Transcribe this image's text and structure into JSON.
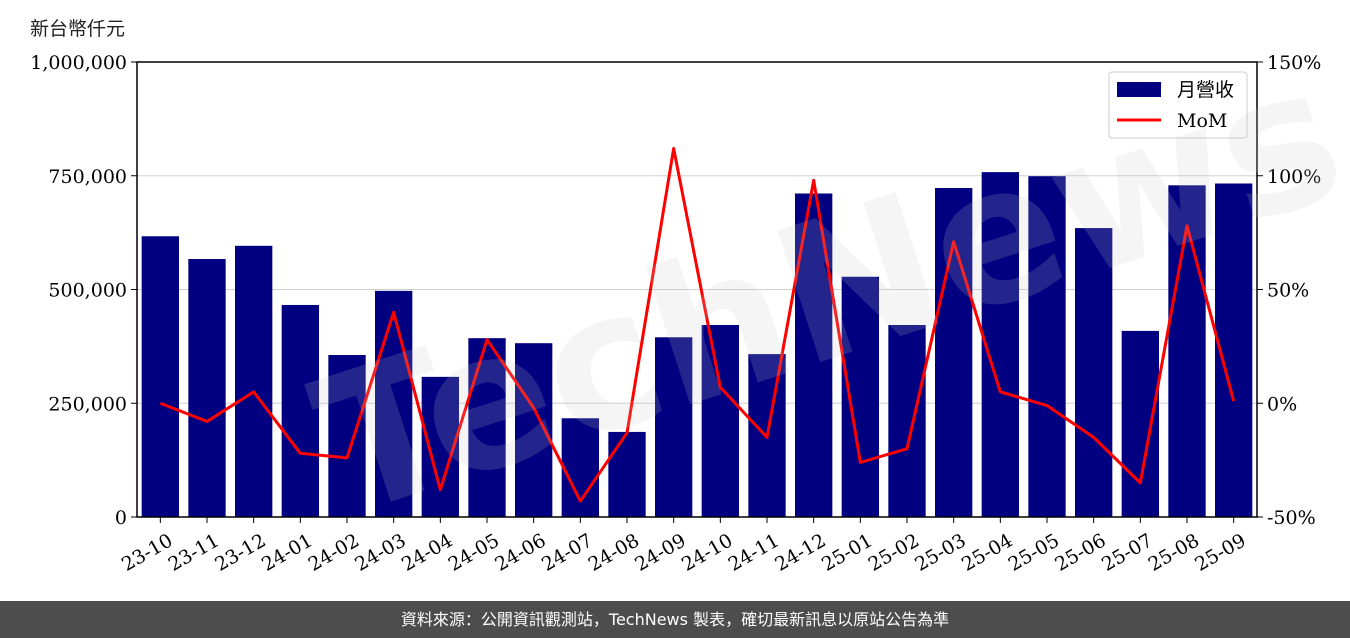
{
  "unit_label": "新台幣仟元",
  "footer_text": "資料來源：公開資訊觀測站，TechNews 製表，確切最新訊息以原站公告為準",
  "watermark_text": "TechNews",
  "colors": {
    "bar": "#000080",
    "line": "#ff0000",
    "footer_bg": "#4d4d4d"
  },
  "chart_data": {
    "type": "bar",
    "categories": [
      "23-10",
      "23-11",
      "23-12",
      "24-01",
      "24-02",
      "24-03",
      "24-04",
      "24-05",
      "24-06",
      "24-07",
      "24-08",
      "24-09",
      "24-10",
      "24-11",
      "24-12",
      "25-01",
      "25-02",
      "25-03",
      "25-04",
      "25-05",
      "25-06",
      "25-07",
      "25-08",
      "25-09"
    ],
    "series": [
      {
        "name": "月營收",
        "type": "bar",
        "axis": "left",
        "values": [
          617000,
          567000,
          596000,
          466000,
          356000,
          497000,
          308000,
          393000,
          382000,
          217000,
          187000,
          395000,
          422000,
          358000,
          711000,
          528000,
          422000,
          723000,
          758000,
          749000,
          635000,
          409000,
          729000,
          733000
        ]
      },
      {
        "name": "MoM",
        "type": "line",
        "axis": "right",
        "values": [
          0,
          -8,
          5,
          -22,
          -24,
          40,
          -38,
          28,
          -2,
          -43,
          -13,
          112,
          7,
          -15,
          98,
          -26,
          -20,
          71,
          5,
          -1,
          -15,
          -35,
          78,
          1
        ]
      }
    ],
    "y_left": {
      "lim": [
        0,
        1000000
      ],
      "ticks": [
        0,
        250000,
        500000,
        750000,
        1000000
      ],
      "tick_labels": [
        "0",
        "250,000",
        "500,000",
        "750,000",
        "1,000,000"
      ]
    },
    "y_right": {
      "lim": [
        -50,
        150
      ],
      "ticks": [
        -50,
        0,
        50,
        100,
        150
      ],
      "tick_labels": [
        "-50%",
        "0%",
        "50%",
        "100%",
        "150%"
      ]
    },
    "grid": true,
    "legend_position": "top-right"
  }
}
